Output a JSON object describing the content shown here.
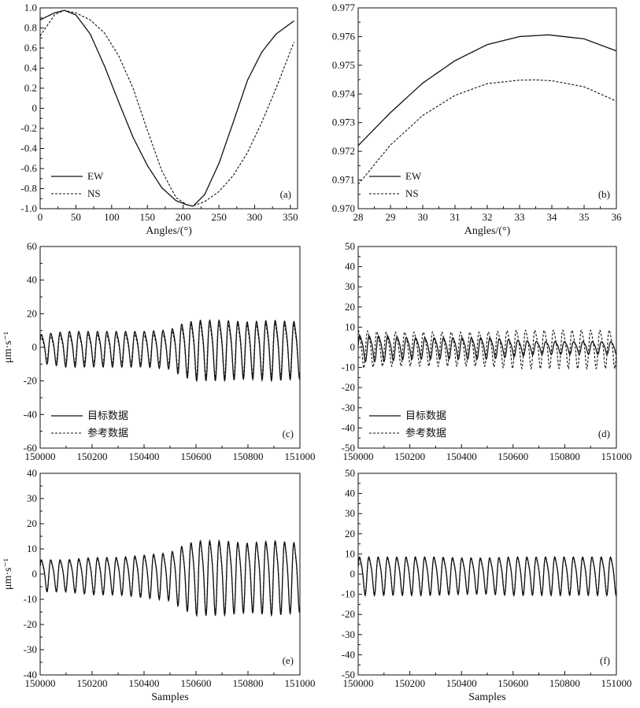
{
  "chart_data": [
    {
      "id": "a",
      "type": "line",
      "panel_label": "(a)",
      "xlabel": "Angles/(°)",
      "ylabel": "",
      "xlim": [
        0,
        360
      ],
      "ylim": [
        -1.0,
        1.0
      ],
      "xticks": [
        0,
        50,
        100,
        150,
        200,
        250,
        300,
        350
      ],
      "xtick_labels": [
        "0",
        "50",
        "100",
        "150",
        "200",
        "250",
        "300",
        "350"
      ],
      "yticks": [
        -1.0,
        -0.8,
        -0.6,
        -0.4,
        -0.2,
        0,
        0.2,
        0.4,
        0.6,
        0.8,
        1.0
      ],
      "ytick_labels": [
        "-1.0",
        "-0.8",
        "-0.6",
        "-0.4",
        "-0.2",
        "0",
        "0.2",
        "0.4",
        "0.6",
        "0.8",
        "1.0"
      ],
      "grid": false,
      "legend_position": "bottom-left",
      "series": [
        {
          "name": "EW",
          "style": "solid",
          "x": [
            0,
            20,
            34,
            50,
            70,
            90,
            110,
            130,
            150,
            170,
            190,
            205,
            214,
            230,
            250,
            270,
            290,
            310,
            330,
            355
          ],
          "y": [
            0.88,
            0.95,
            0.975,
            0.93,
            0.74,
            0.42,
            0.06,
            -0.29,
            -0.57,
            -0.79,
            -0.92,
            -0.96,
            -0.975,
            -0.86,
            -0.55,
            -0.14,
            0.28,
            0.56,
            0.74,
            0.87
          ]
        },
        {
          "name": "NS",
          "style": "dashed",
          "x": [
            0,
            20,
            33,
            50,
            70,
            90,
            110,
            130,
            150,
            170,
            190,
            205,
            213,
            230,
            250,
            270,
            290,
            310,
            330,
            355
          ],
          "y": [
            0.72,
            0.93,
            0.975,
            0.95,
            0.88,
            0.75,
            0.52,
            0.2,
            -0.22,
            -0.62,
            -0.89,
            -0.96,
            -0.975,
            -0.93,
            -0.83,
            -0.67,
            -0.44,
            -0.14,
            0.2,
            0.66
          ]
        }
      ]
    },
    {
      "id": "b",
      "type": "line",
      "panel_label": "(b)",
      "xlabel": "Angles/(°)",
      "ylabel": "",
      "xlim": [
        28,
        36
      ],
      "ylim": [
        0.97,
        0.977
      ],
      "xticks": [
        28,
        29,
        30,
        31,
        32,
        33,
        34,
        35,
        36
      ],
      "xtick_labels": [
        "28",
        "29",
        "30",
        "31",
        "32",
        "33",
        "34",
        "35",
        "36"
      ],
      "yticks": [
        0.97,
        0.971,
        0.972,
        0.973,
        0.974,
        0.975,
        0.976,
        0.977
      ],
      "ytick_labels": [
        "0.970",
        "0.971",
        "0.972",
        "0.973",
        "0.974",
        "0.975",
        "0.976",
        "0.977"
      ],
      "grid": false,
      "legend_position": "bottom-left",
      "series": [
        {
          "name": "EW",
          "style": "solid",
          "x": [
            28,
            29,
            30,
            31,
            32,
            33,
            33.9,
            35,
            36
          ],
          "y": [
            0.9722,
            0.97335,
            0.97438,
            0.97516,
            0.97572,
            0.976,
            0.97606,
            0.97592,
            0.9755
          ]
        },
        {
          "name": "NS",
          "style": "dashed",
          "x": [
            28,
            29,
            30,
            31,
            32,
            33,
            33.5,
            34,
            35,
            36
          ],
          "y": [
            0.97085,
            0.97222,
            0.97325,
            0.97395,
            0.97436,
            0.97448,
            0.97449,
            0.97446,
            0.97425,
            0.97375
          ]
        }
      ]
    },
    {
      "id": "c",
      "type": "line",
      "panel_label": "(c)",
      "xlabel": "",
      "ylabel": "μm·s⁻¹",
      "xlim": [
        150000,
        151000
      ],
      "ylim": [
        -60,
        60
      ],
      "xticks": [
        150000,
        150200,
        150400,
        150600,
        150800,
        151000
      ],
      "xtick_labels": [
        "150000",
        "150200",
        "150400",
        "150600",
        "150800",
        "151000"
      ],
      "yticks": [
        -60,
        -40,
        -20,
        0,
        20,
        40,
        60
      ],
      "ytick_labels": [
        "-60",
        "-40",
        "-20",
        "0",
        "20",
        "40",
        "60"
      ],
      "grid": false,
      "legend_position": "bottom-left",
      "series": [
        {
          "name": "目标数据",
          "style": "solid",
          "kind": "oscillation",
          "x": [
            150000,
            150100,
            150200,
            150300,
            150400,
            150500,
            150550,
            150600,
            150700,
            150800,
            150900,
            151000
          ],
          "amplitude": [
            8,
            10,
            10,
            10,
            10,
            11,
            15,
            17,
            17,
            16,
            17,
            16
          ],
          "period": 36,
          "phase": 0.3
        },
        {
          "name": "参考数据",
          "style": "dashed",
          "kind": "oscillation",
          "x": [
            150000,
            150100,
            150200,
            150300,
            150400,
            150500,
            150550,
            150600,
            150700,
            150800,
            150900,
            151000
          ],
          "amplitude": [
            6,
            8,
            8,
            8,
            8,
            9,
            13,
            15,
            15,
            14,
            15,
            14
          ],
          "period": 36,
          "phase": 0.45
        }
      ]
    },
    {
      "id": "d",
      "type": "line",
      "panel_label": "(d)",
      "xlabel": "",
      "ylabel": "",
      "xlim": [
        150000,
        151000
      ],
      "ylim": [
        -50,
        50
      ],
      "xticks": [
        150000,
        150200,
        150400,
        150600,
        150800,
        151000
      ],
      "xtick_labels": [
        "150000",
        "150200",
        "150400",
        "150600",
        "150800",
        "151000"
      ],
      "yticks": [
        -50,
        -40,
        -30,
        -20,
        -10,
        0,
        10,
        20,
        30,
        40,
        50
      ],
      "ytick_labels": [
        "-50",
        "-40",
        "-30",
        "-20",
        "-10",
        "0",
        "10",
        "20",
        "30",
        "40",
        "50"
      ],
      "grid": false,
      "legend_position": "bottom-left",
      "series": [
        {
          "name": "目标数据",
          "style": "solid",
          "kind": "oscillation",
          "x": [
            150000,
            150100,
            150200,
            150300,
            150400,
            150500,
            150600,
            150700,
            150800,
            150900,
            151000
          ],
          "amplitude": [
            6,
            6,
            5,
            5,
            5,
            5,
            4,
            3,
            3,
            3,
            3
          ],
          "period": 36,
          "phase": 0.0
        },
        {
          "name": "参考数据",
          "style": "dashed",
          "kind": "oscillation",
          "x": [
            150000,
            150100,
            150200,
            150300,
            150400,
            150500,
            150600,
            150700,
            150800,
            150900,
            151000
          ],
          "amplitude": [
            9,
            8,
            8,
            8,
            8,
            8,
            9,
            9,
            9,
            9,
            9
          ],
          "period": 36,
          "phase": 1.1
        }
      ]
    },
    {
      "id": "e",
      "type": "line",
      "panel_label": "(e)",
      "xlabel": "Samples",
      "ylabel": "μm·s⁻¹",
      "xlim": [
        150000,
        151000
      ],
      "ylim": [
        -40,
        40
      ],
      "xticks": [
        150000,
        150200,
        150400,
        150600,
        150800,
        151000
      ],
      "xtick_labels": [
        "150000",
        "150200",
        "150400",
        "150600",
        "150800",
        "151000"
      ],
      "yticks": [
        -40,
        -30,
        -20,
        -10,
        0,
        10,
        20,
        30,
        40
      ],
      "ytick_labels": [
        "-40",
        "-30",
        "-20",
        "-10",
        "0",
        "10",
        "20",
        "30",
        "40"
      ],
      "grid": false,
      "legend_position": "none",
      "series": [
        {
          "name": "",
          "style": "solid",
          "kind": "oscillation",
          "x": [
            150000,
            150100,
            150200,
            150300,
            150400,
            150500,
            150550,
            150600,
            150700,
            150800,
            150900,
            151000
          ],
          "amplitude": [
            6,
            6,
            7,
            7,
            8,
            9,
            12,
            14,
            14,
            13,
            14,
            13
          ],
          "period": 36,
          "phase": 0.3
        },
        {
          "name": "",
          "style": "dashed",
          "kind": "oscillation",
          "x": [
            150000,
            150100,
            150200,
            150300,
            150400,
            150500,
            150550,
            150600,
            150700,
            150800,
            150900,
            151000
          ],
          "amplitude": [
            5.5,
            5.5,
            6.5,
            6.5,
            7.5,
            8.5,
            11.5,
            13.5,
            13.5,
            12.5,
            13.5,
            12.5
          ],
          "period": 36,
          "phase": 0.36
        }
      ]
    },
    {
      "id": "f",
      "type": "line",
      "panel_label": "(f)",
      "xlabel": "Samples",
      "ylabel": "",
      "xlim": [
        150000,
        151000
      ],
      "ylim": [
        -50,
        50
      ],
      "xticks": [
        150000,
        150200,
        150400,
        150600,
        150800,
        151000
      ],
      "xtick_labels": [
        "150000",
        "150200",
        "150400",
        "150600",
        "150800",
        "151000"
      ],
      "yticks": [
        -50,
        -40,
        -30,
        -20,
        -10,
        0,
        10,
        20,
        30,
        40,
        50
      ],
      "ytick_labels": [
        "-50",
        "-40",
        "-30",
        "-20",
        "-10",
        "0",
        "10",
        "20",
        "30",
        "40",
        "50"
      ],
      "grid": false,
      "legend_position": "none",
      "series": [
        {
          "name": "",
          "style": "solid",
          "kind": "oscillation",
          "x": [
            150000,
            150100,
            150200,
            150300,
            150400,
            150500,
            150600,
            150700,
            150800,
            150900,
            151000
          ],
          "amplitude": [
            9,
            9,
            9,
            9,
            8.5,
            8.5,
            9,
            9,
            9,
            9,
            9
          ],
          "period": 36,
          "phase": 0.2
        },
        {
          "name": "",
          "style": "dashed",
          "kind": "oscillation",
          "x": [
            150000,
            150100,
            150200,
            150300,
            150400,
            150500,
            150600,
            150700,
            150800,
            150900,
            151000
          ],
          "amplitude": [
            8.5,
            8.5,
            8.5,
            8.5,
            8,
            8,
            8.5,
            8.5,
            8.5,
            8.5,
            8.5
          ],
          "period": 36,
          "phase": 0.27
        }
      ]
    }
  ]
}
